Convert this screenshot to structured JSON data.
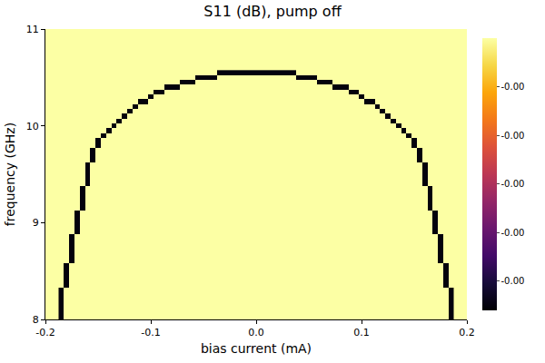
{
  "chart_data": {
    "type": "heatmap",
    "title": "S11 (dB), pump off",
    "x_label": "bias current (mA)",
    "y_label": "frequency (GHz)",
    "xlim": [
      -0.2,
      0.2
    ],
    "ylim": [
      8,
      11
    ],
    "xticks": [
      -0.2,
      -0.1,
      {
        "value": 0,
        "label": "0.0"
      },
      0.1,
      0.2
    ],
    "yticks": [
      8,
      9,
      10,
      11
    ],
    "grid": false,
    "zlim": [
      -0.00056,
      0
    ],
    "zticks": [
      {
        "value": -0.0001,
        "label": "-0.00"
      },
      {
        "value": -0.0002,
        "label": "-0.00"
      },
      {
        "value": -0.0003,
        "label": "-0.00"
      },
      {
        "value": -0.0004,
        "label": "-0.00"
      },
      {
        "value": -0.0005,
        "label": "-0.00"
      }
    ],
    "x": [
      -0.1,
      0.1
    ],
    "y": [
      8.75,
      10.25
    ],
    "z": [
      [
        0,
        0
      ],
      [
        0,
        0
      ]
    ],
    "cells": [
      [
        -0.185,
        8.0,
        -0.00055
      ],
      [
        -0.185,
        8.05,
        -0.00055
      ],
      [
        -0.185,
        8.1,
        -0.00055
      ],
      [
        -0.185,
        8.15,
        -0.00055
      ],
      [
        -0.185,
        8.2,
        -0.00055
      ],
      [
        -0.185,
        8.25,
        -0.00055
      ],
      [
        -0.185,
        8.3,
        -0.00055
      ],
      [
        -0.18,
        8.35,
        -0.00055
      ],
      [
        -0.18,
        8.4,
        -0.00055
      ],
      [
        -0.18,
        8.45,
        -0.00055
      ],
      [
        -0.18,
        8.5,
        -0.00055
      ],
      [
        -0.18,
        8.55,
        -0.00055
      ],
      [
        -0.175,
        8.6,
        -0.00055
      ],
      [
        -0.175,
        8.65,
        -0.00055
      ],
      [
        -0.175,
        8.7,
        -0.00055
      ],
      [
        -0.175,
        8.75,
        -0.00055
      ],
      [
        -0.175,
        8.8,
        -0.00055
      ],
      [
        -0.175,
        8.85,
        -0.00055
      ],
      [
        -0.17,
        8.9,
        -0.00055
      ],
      [
        -0.17,
        8.95,
        -0.00055
      ],
      [
        -0.17,
        9.0,
        -0.00055
      ],
      [
        -0.17,
        9.05,
        -0.00055
      ],
      [
        -0.17,
        9.1,
        -0.00055
      ],
      [
        -0.165,
        9.15,
        -0.00055
      ],
      [
        -0.165,
        9.2,
        -0.00055
      ],
      [
        -0.165,
        9.25,
        -0.00055
      ],
      [
        -0.165,
        9.3,
        -0.00055
      ],
      [
        -0.165,
        9.35,
        -0.00055
      ],
      [
        -0.16,
        9.4,
        -0.00055
      ],
      [
        -0.16,
        9.45,
        -0.00055
      ],
      [
        -0.16,
        9.5,
        -0.00055
      ],
      [
        -0.16,
        9.55,
        -0.00055
      ],
      [
        -0.16,
        9.6,
        -0.00055
      ],
      [
        -0.155,
        9.65,
        -0.00055
      ],
      [
        -0.155,
        9.7,
        -0.00055
      ],
      [
        -0.155,
        9.75,
        -0.00055
      ],
      [
        -0.15,
        9.8,
        -0.00055
      ],
      [
        -0.15,
        9.85,
        -0.00055
      ],
      [
        -0.145,
        9.9,
        -0.00055
      ],
      [
        -0.14,
        9.95,
        -0.00055
      ],
      [
        -0.135,
        10.0,
        -0.00055
      ],
      [
        -0.13,
        10.05,
        -0.00055
      ],
      [
        -0.125,
        10.1,
        -0.00055
      ],
      [
        -0.12,
        10.15,
        -0.00055
      ],
      [
        -0.115,
        10.2,
        -0.00055
      ],
      [
        -0.11,
        10.25,
        -0.00055
      ],
      [
        -0.105,
        10.25,
        -0.00055
      ],
      [
        -0.1,
        10.3,
        -0.00055
      ],
      [
        -0.095,
        10.35,
        -0.00055
      ],
      [
        -0.09,
        10.35,
        -0.00055
      ],
      [
        -0.085,
        10.4,
        -0.00055
      ],
      [
        -0.08,
        10.4,
        -0.00055
      ],
      [
        -0.075,
        10.4,
        -0.00055
      ],
      [
        -0.07,
        10.45,
        -0.00055
      ],
      [
        -0.065,
        10.45,
        -0.00055
      ],
      [
        -0.06,
        10.45,
        -0.00055
      ],
      [
        -0.055,
        10.5,
        -0.00055
      ],
      [
        -0.05,
        10.5,
        -0.00055
      ],
      [
        -0.045,
        10.5,
        -0.00055
      ],
      [
        -0.04,
        10.5,
        -0.00055
      ],
      [
        -0.035,
        10.55,
        -0.00055
      ],
      [
        -0.03,
        10.55,
        -0.00055
      ],
      [
        -0.025,
        10.55,
        -0.00055
      ],
      [
        -0.02,
        10.55,
        -0.00055
      ],
      [
        -0.015,
        10.55,
        -0.00055
      ],
      [
        -0.01,
        10.55,
        -0.00055
      ],
      [
        -0.005,
        10.55,
        -0.00055
      ],
      [
        0,
        10.55,
        -0.00055
      ],
      [
        0.005,
        10.55,
        -0.00055
      ],
      [
        0.01,
        10.55,
        -0.00055
      ],
      [
        0.015,
        10.55,
        -0.00055
      ],
      [
        0.02,
        10.55,
        -0.00055
      ],
      [
        0.025,
        10.55,
        -0.00055
      ],
      [
        0.03,
        10.55,
        -0.00055
      ],
      [
        0.035,
        10.55,
        -0.00055
      ],
      [
        0.04,
        10.5,
        -0.00055
      ],
      [
        0.045,
        10.5,
        -0.00055
      ],
      [
        0.05,
        10.5,
        -0.00055
      ],
      [
        0.055,
        10.5,
        -0.00055
      ],
      [
        0.06,
        10.45,
        -0.00055
      ],
      [
        0.065,
        10.45,
        -0.00055
      ],
      [
        0.07,
        10.45,
        -0.00055
      ],
      [
        0.075,
        10.4,
        -0.00055
      ],
      [
        0.08,
        10.4,
        -0.00055
      ],
      [
        0.085,
        10.4,
        -0.00055
      ],
      [
        0.09,
        10.35,
        -0.00055
      ],
      [
        0.095,
        10.35,
        -0.00055
      ],
      [
        0.1,
        10.3,
        -0.00055
      ],
      [
        0.105,
        10.25,
        -0.00055
      ],
      [
        0.11,
        10.25,
        -0.00055
      ],
      [
        0.115,
        10.2,
        -0.00055
      ],
      [
        0.12,
        10.15,
        -0.00055
      ],
      [
        0.125,
        10.1,
        -0.00055
      ],
      [
        0.13,
        10.05,
        -0.00055
      ],
      [
        0.135,
        10.0,
        -0.00055
      ],
      [
        0.14,
        9.95,
        -0.00055
      ],
      [
        0.145,
        9.9,
        -0.00055
      ],
      [
        0.15,
        9.85,
        -0.00055
      ],
      [
        0.15,
        9.8,
        -0.00055
      ],
      [
        0.155,
        9.75,
        -0.00055
      ],
      [
        0.155,
        9.7,
        -0.00055
      ],
      [
        0.155,
        9.65,
        -0.00055
      ],
      [
        0.16,
        9.6,
        -0.00055
      ],
      [
        0.16,
        9.55,
        -0.00055
      ],
      [
        0.16,
        9.5,
        -0.00055
      ],
      [
        0.16,
        9.45,
        -0.00055
      ],
      [
        0.16,
        9.4,
        -0.00055
      ],
      [
        0.165,
        9.35,
        -0.00055
      ],
      [
        0.165,
        9.3,
        -0.00055
      ],
      [
        0.165,
        9.25,
        -0.00055
      ],
      [
        0.165,
        9.2,
        -0.00055
      ],
      [
        0.165,
        9.15,
        -0.00055
      ],
      [
        0.17,
        9.1,
        -0.00055
      ],
      [
        0.17,
        9.05,
        -0.00055
      ],
      [
        0.17,
        9.0,
        -0.00055
      ],
      [
        0.17,
        8.95,
        -0.00055
      ],
      [
        0.17,
        8.9,
        -0.00055
      ],
      [
        0.175,
        8.85,
        -0.00055
      ],
      [
        0.175,
        8.8,
        -0.00055
      ],
      [
        0.175,
        8.75,
        -0.00055
      ],
      [
        0.175,
        8.7,
        -0.00055
      ],
      [
        0.175,
        8.65,
        -0.00055
      ],
      [
        0.175,
        8.6,
        -0.00055
      ],
      [
        0.18,
        8.55,
        -0.00055
      ],
      [
        0.18,
        8.5,
        -0.00055
      ],
      [
        0.18,
        8.45,
        -0.00055
      ],
      [
        0.18,
        8.4,
        -0.00055
      ],
      [
        0.18,
        8.35,
        -0.00055
      ],
      [
        0.185,
        8.3,
        -0.00055
      ],
      [
        0.185,
        8.25,
        -0.00055
      ],
      [
        0.185,
        8.2,
        -0.00055
      ],
      [
        0.185,
        8.15,
        -0.00055
      ],
      [
        0.185,
        8.1,
        -0.00055
      ],
      [
        0.185,
        8.05,
        -0.00055
      ],
      [
        0.185,
        8.0,
        -0.00055
      ]
    ]
  }
}
